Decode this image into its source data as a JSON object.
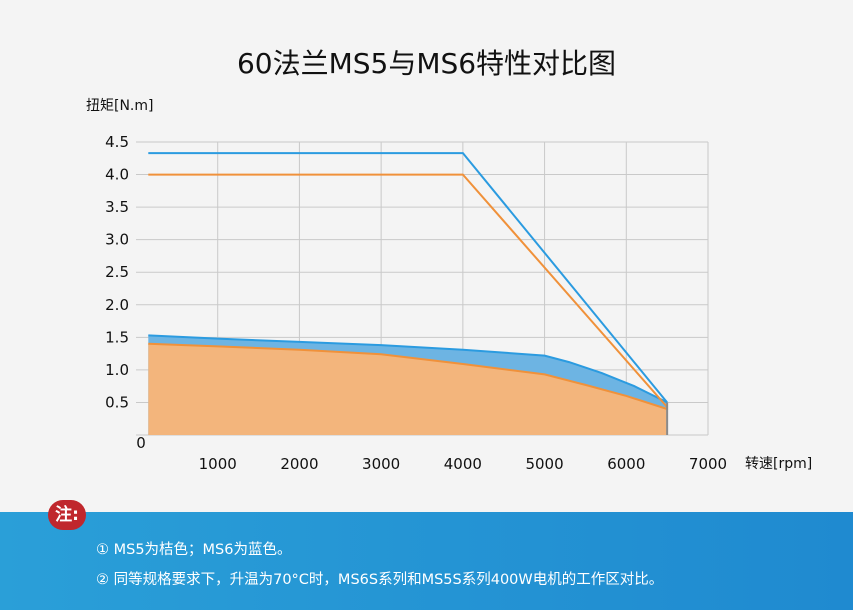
{
  "title": "60法兰MS5与MS6特性对比图",
  "colors": {
    "ms6_line": "#2b9be0",
    "ms6_fill": "#6db4e3",
    "ms5_line": "#f0913a",
    "ms5_fill": "#f3b57c",
    "grid": "#c9c9c9",
    "footer": "#2a9fd8",
    "badge": "#c0272d"
  },
  "chart_data": {
    "type": "area",
    "title": "",
    "xlabel": "转速[rpm]",
    "ylabel": "扭矩[N.m]",
    "xlim": [
      0,
      7000
    ],
    "ylim": [
      0,
      4.5
    ],
    "x_ticks": [
      1000,
      2000,
      3000,
      4000,
      5000,
      6000,
      7000
    ],
    "y_ticks": [
      0.5,
      1.0,
      1.5,
      2.0,
      2.5,
      3.0,
      3.5,
      4.0,
      4.5
    ],
    "x_tick_labels": [
      "1000",
      "2000",
      "3000",
      "4000",
      "5000",
      "6000",
      "7000"
    ],
    "y_tick_labels": [
      "0.5",
      "1.0",
      "1.5",
      "2.0",
      "2.5",
      "3.0",
      "3.5",
      "4.0",
      "4.5"
    ],
    "origin_label": "0",
    "grid": true,
    "series": [
      {
        "id": "ms6",
        "peak": [
          [
            150,
            4.33
          ],
          [
            4000,
            4.33
          ],
          [
            6500,
            0.5
          ]
        ],
        "continuous": [
          [
            150,
            1.53
          ],
          [
            1000,
            1.48
          ],
          [
            2000,
            1.43
          ],
          [
            3000,
            1.38
          ],
          [
            4000,
            1.31
          ],
          [
            5000,
            1.22
          ],
          [
            5300,
            1.12
          ],
          [
            5700,
            0.95
          ],
          [
            6100,
            0.75
          ],
          [
            6500,
            0.5
          ]
        ]
      },
      {
        "id": "ms5",
        "peak": [
          [
            150,
            4.0
          ],
          [
            4000,
            4.0
          ],
          [
            6500,
            0.43
          ]
        ],
        "continuous": [
          [
            150,
            1.4
          ],
          [
            1000,
            1.36
          ],
          [
            2000,
            1.31
          ],
          [
            3000,
            1.24
          ],
          [
            4000,
            1.09
          ],
          [
            5000,
            0.93
          ],
          [
            5500,
            0.77
          ],
          [
            6000,
            0.6
          ],
          [
            6500,
            0.4
          ]
        ]
      }
    ]
  },
  "notes": {
    "badge": "注:",
    "line1": "① MS5为桔色；MS6为蓝色。",
    "line2": "② 同等规格要求下，升温为70°C时，MS6S系列和MS5S系列400W电机的工作区对比。"
  }
}
